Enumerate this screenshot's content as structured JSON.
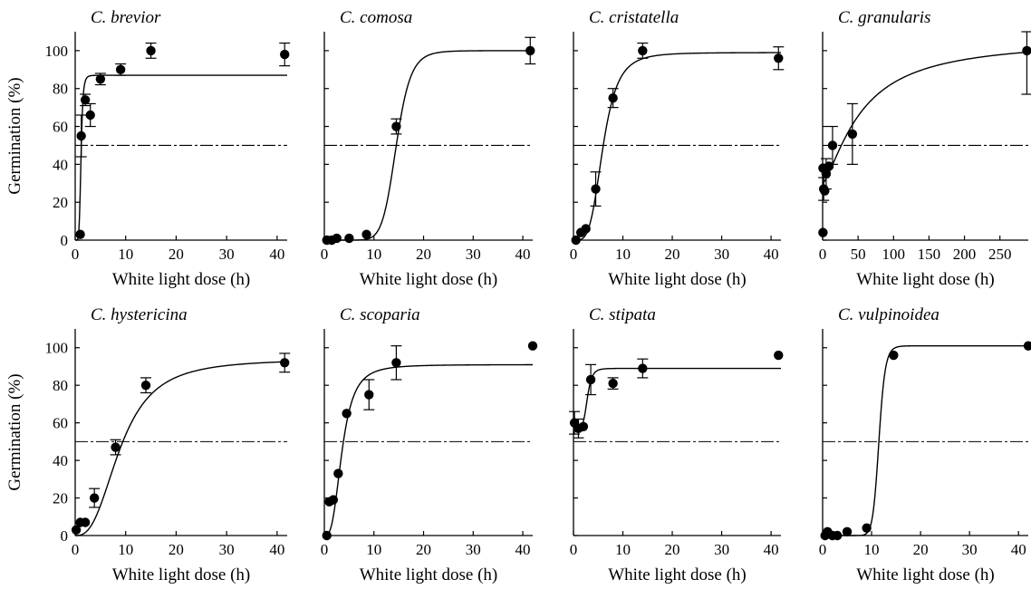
{
  "figure": {
    "ylabel": "Germination (%)",
    "xlabel": "White light dose (h)"
  },
  "chart_data": [
    {
      "type": "scatter",
      "title": "C. brevior",
      "xlabel": "White light dose (h)",
      "ylabel": "Germination (%)",
      "xlim": [
        0,
        42
      ],
      "ylim": [
        0,
        110
      ],
      "xticks": [
        0,
        10,
        20,
        30,
        40
      ],
      "yticks": [
        0,
        20,
        40,
        60,
        80,
        100
      ],
      "reference_line_y": 50,
      "points": [
        {
          "x": 1.0,
          "y": 3,
          "err": 0
        },
        {
          "x": 1.2,
          "y": 55,
          "err": 11
        },
        {
          "x": 2.0,
          "y": 74,
          "err": 3
        },
        {
          "x": 3.0,
          "y": 66,
          "err": 6
        },
        {
          "x": 5.0,
          "y": 85,
          "err": 3
        },
        {
          "x": 9.0,
          "y": 90,
          "err": 3
        },
        {
          "x": 15.0,
          "y": 100,
          "err": 4
        },
        {
          "x": 41.5,
          "y": 98,
          "err": 6
        }
      ],
      "fit": {
        "kind": "hill",
        "min": 0,
        "max": 87,
        "x50": 1.15,
        "n": 6
      }
    },
    {
      "type": "scatter",
      "title": "C. comosa",
      "xlabel": "White light dose (h)",
      "ylabel": "",
      "xlim": [
        0,
        42
      ],
      "ylim": [
        0,
        110
      ],
      "xticks": [
        0,
        10,
        20,
        30,
        40
      ],
      "yticks": [
        0,
        20,
        40,
        60,
        80,
        100
      ],
      "reference_line_y": 50,
      "points": [
        {
          "x": 0.5,
          "y": 0,
          "err": 0
        },
        {
          "x": 1.5,
          "y": 0,
          "err": 0
        },
        {
          "x": 2.5,
          "y": 1,
          "err": 0
        },
        {
          "x": 5.0,
          "y": 1,
          "err": 0
        },
        {
          "x": 8.5,
          "y": 3,
          "err": 0
        },
        {
          "x": 14.5,
          "y": 60,
          "err": 4
        },
        {
          "x": 41.5,
          "y": 100,
          "err": 7
        }
      ],
      "fit": {
        "kind": "hill",
        "min": 0,
        "max": 100,
        "x50": 14.5,
        "n": 10
      }
    },
    {
      "type": "scatter",
      "title": "C. cristatella",
      "xlabel": "White light dose (h)",
      "ylabel": "",
      "xlim": [
        0,
        42
      ],
      "ylim": [
        0,
        110
      ],
      "xticks": [
        0,
        10,
        20,
        30,
        40
      ],
      "yticks": [
        0,
        20,
        40,
        60,
        80,
        100
      ],
      "reference_line_y": 50,
      "points": [
        {
          "x": 0.5,
          "y": 0,
          "err": 0
        },
        {
          "x": 1.5,
          "y": 4,
          "err": 0
        },
        {
          "x": 2.5,
          "y": 6,
          "err": 0
        },
        {
          "x": 4.5,
          "y": 27,
          "err": 9
        },
        {
          "x": 8.0,
          "y": 75,
          "err": 5
        },
        {
          "x": 14.0,
          "y": 100,
          "err": 4
        },
        {
          "x": 41.5,
          "y": 96,
          "err": 6
        }
      ],
      "fit": {
        "kind": "hill",
        "min": 0,
        "max": 99,
        "x50": 6.0,
        "n": 4
      }
    },
    {
      "type": "scatter",
      "title": "C. granularis",
      "xlabel": "White light dose (h)",
      "ylabel": "",
      "xlim": [
        0,
        290
      ],
      "ylim": [
        0,
        110
      ],
      "xticks": [
        0,
        50,
        100,
        150,
        200,
        250
      ],
      "yticks": [
        0,
        20,
        40,
        60,
        80,
        100
      ],
      "reference_line_y": 50,
      "points": [
        {
          "x": 0.5,
          "y": 4,
          "err": 0
        },
        {
          "x": 0.5,
          "y": 38,
          "err": 0
        },
        {
          "x": 1.5,
          "y": 27,
          "err": 6
        },
        {
          "x": 3.0,
          "y": 26,
          "err": 0
        },
        {
          "x": 5.0,
          "y": 35,
          "err": 8
        },
        {
          "x": 9.0,
          "y": 39,
          "err": 0
        },
        {
          "x": 14.0,
          "y": 50,
          "err": 10
        },
        {
          "x": 42.0,
          "y": 56,
          "err": 16
        },
        {
          "x": 288.0,
          "y": 100,
          "err": 23
        }
      ],
      "fit": {
        "kind": "hill",
        "min": 30,
        "max": 106,
        "x50": 55,
        "n": 1.4
      }
    },
    {
      "type": "scatter",
      "title": "C. hystericina",
      "xlabel": "White light dose (h)",
      "ylabel": "Germination (%)",
      "xlim": [
        0,
        42
      ],
      "ylim": [
        0,
        110
      ],
      "xticks": [
        0,
        10,
        20,
        30,
        40
      ],
      "yticks": [
        0,
        20,
        40,
        60,
        80,
        100
      ],
      "reference_line_y": 50,
      "points": [
        {
          "x": 0.2,
          "y": 3,
          "err": 0
        },
        {
          "x": 1.0,
          "y": 7,
          "err": 0
        },
        {
          "x": 2.0,
          "y": 7,
          "err": 0
        },
        {
          "x": 3.8,
          "y": 20,
          "err": 5
        },
        {
          "x": 8.0,
          "y": 47,
          "err": 4
        },
        {
          "x": 14.0,
          "y": 80,
          "err": 4
        },
        {
          "x": 41.5,
          "y": 92,
          "err": 5
        }
      ],
      "fit": {
        "kind": "hill",
        "min": 0,
        "max": 94,
        "x50": 9.0,
        "n": 2.7
      }
    },
    {
      "type": "scatter",
      "title": "C. scoparia",
      "xlabel": "White light dose (h)",
      "ylabel": "",
      "xlim": [
        0,
        42
      ],
      "ylim": [
        0,
        110
      ],
      "xticks": [
        0,
        10,
        20,
        30,
        40
      ],
      "yticks": [
        0,
        20,
        40,
        60,
        80,
        100
      ],
      "reference_line_y": 50,
      "points": [
        {
          "x": 0.5,
          "y": 0,
          "err": 0
        },
        {
          "x": 1.0,
          "y": 18,
          "err": 0
        },
        {
          "x": 1.8,
          "y": 19,
          "err": 0
        },
        {
          "x": 2.8,
          "y": 33,
          "err": 0
        },
        {
          "x": 4.5,
          "y": 65,
          "err": 0
        },
        {
          "x": 9.0,
          "y": 75,
          "err": 8
        },
        {
          "x": 14.5,
          "y": 92,
          "err": 9
        },
        {
          "x": 42.0,
          "y": 101,
          "err": 0
        }
      ],
      "fit": {
        "kind": "hill",
        "min": 0,
        "max": 91,
        "x50": 3.6,
        "n": 3
      }
    },
    {
      "type": "scatter",
      "title": "C. stipata",
      "xlabel": "White light dose (h)",
      "ylabel": "",
      "xlim": [
        0,
        42
      ],
      "ylim": [
        0,
        110
      ],
      "xticks": [
        0,
        10,
        20,
        30,
        40
      ],
      "yticks": [
        0,
        20,
        40,
        60,
        80,
        100
      ],
      "reference_line_y": 50,
      "points": [
        {
          "x": 0.2,
          "y": 60,
          "err": 6
        },
        {
          "x": 1.0,
          "y": 57,
          "err": 5
        },
        {
          "x": 2.0,
          "y": 58,
          "err": 0
        },
        {
          "x": 3.5,
          "y": 83,
          "err": 8
        },
        {
          "x": 8.0,
          "y": 81,
          "err": 3
        },
        {
          "x": 14.0,
          "y": 89,
          "err": 5
        },
        {
          "x": 41.5,
          "y": 96,
          "err": 0
        }
      ],
      "fit": {
        "kind": "hill",
        "min": 57,
        "max": 89,
        "x50": 2.8,
        "n": 6
      }
    },
    {
      "type": "scatter",
      "title": "C. vulpinoidea",
      "xlabel": "White light dose (h)",
      "ylabel": "",
      "xlim": [
        0,
        42
      ],
      "ylim": [
        0,
        110
      ],
      "xticks": [
        0,
        10,
        20,
        30,
        40
      ],
      "yticks": [
        0,
        20,
        40,
        60,
        80,
        100
      ],
      "reference_line_y": 50,
      "points": [
        {
          "x": 0.5,
          "y": 0,
          "err": 0
        },
        {
          "x": 1.0,
          "y": 2,
          "err": 0
        },
        {
          "x": 2.0,
          "y": 0,
          "err": 0
        },
        {
          "x": 3.0,
          "y": 0,
          "err": 0
        },
        {
          "x": 5.0,
          "y": 2,
          "err": 0
        },
        {
          "x": 9.0,
          "y": 4,
          "err": 0
        },
        {
          "x": 14.5,
          "y": 96,
          "err": 0
        },
        {
          "x": 42.0,
          "y": 101,
          "err": 0
        }
      ],
      "fit": {
        "kind": "hill",
        "min": 0,
        "max": 101,
        "x50": 11.5,
        "n": 18
      }
    }
  ]
}
